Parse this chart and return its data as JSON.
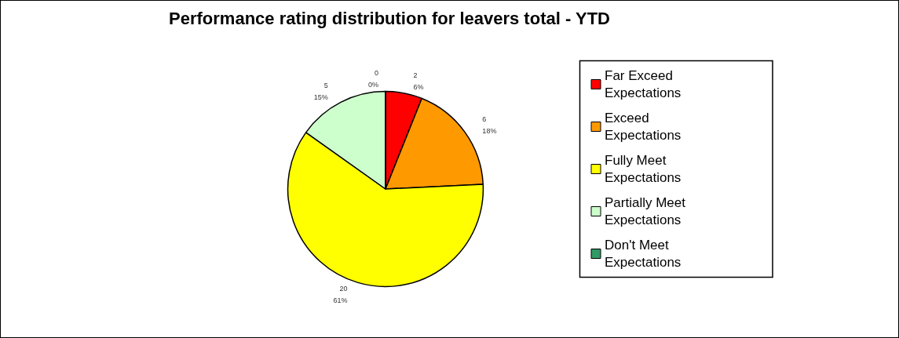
{
  "chart_data": {
    "type": "pie",
    "title": "Performance rating distribution for leavers total - YTD",
    "categories": [
      "Far Exceed Expectations",
      "Exceed Expectations",
      "Fully Meet Expectations",
      "Partially Meet Expectations",
      "Don't Meet Expectations"
    ],
    "values": [
      2,
      6,
      20,
      5,
      0
    ],
    "colors": [
      "#ff0000",
      "#ff9900",
      "#ffff00",
      "#ccffcc",
      "#339966"
    ],
    "value_labels": [
      "2\n6%",
      "6\n18%",
      "20\n61%",
      "5\n15%",
      "0\n0%"
    ],
    "legend": "right"
  }
}
